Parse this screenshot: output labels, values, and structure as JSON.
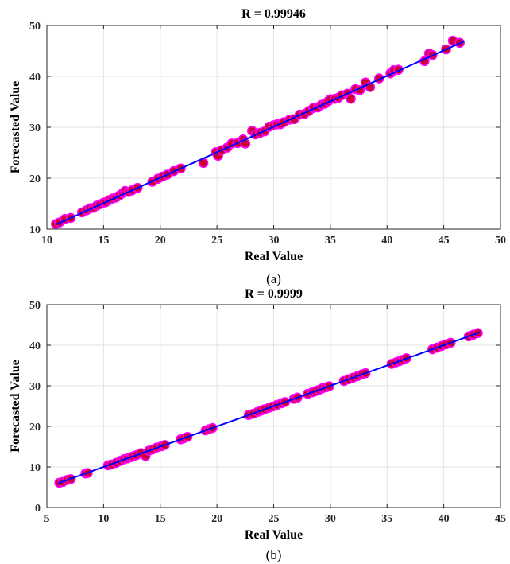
{
  "colors": {
    "fit_line": "#0000ff",
    "marker_fill": "#cc0033",
    "marker_edge": "#ff00ff",
    "grid": "#e3e3e3",
    "axes": "#262626"
  },
  "chart_data": [
    {
      "type": "scatter",
      "caption": "(a)",
      "title": "R = 0.99946",
      "xlabel": "Real Value",
      "ylabel": "Forecasted Value",
      "xlim": [
        10,
        50
      ],
      "ylim": [
        10,
        50
      ],
      "xticks": [
        10,
        15,
        20,
        25,
        30,
        35,
        40,
        45,
        50
      ],
      "yticks": [
        10,
        20,
        30,
        40,
        50
      ],
      "grid": true,
      "fit_line": {
        "x": [
          10.8,
          46.8
        ],
        "y": [
          10.9,
          46.9
        ]
      },
      "points": [
        [
          10.8,
          11.0
        ],
        [
          11.1,
          11.3
        ],
        [
          11.6,
          12.0
        ],
        [
          12.1,
          12.2
        ],
        [
          13.1,
          13.3
        ],
        [
          13.5,
          13.7
        ],
        [
          13.8,
          14.1
        ],
        [
          14.1,
          14.2
        ],
        [
          14.4,
          14.6
        ],
        [
          14.7,
          14.9
        ],
        [
          15.0,
          15.2
        ],
        [
          15.2,
          15.3
        ],
        [
          15.5,
          15.7
        ],
        [
          15.8,
          16.0
        ],
        [
          16.1,
          16.2
        ],
        [
          16.4,
          16.6
        ],
        [
          16.7,
          17.1
        ],
        [
          16.9,
          17.5
        ],
        [
          17.2,
          17.3
        ],
        [
          17.5,
          17.6
        ],
        [
          18.0,
          18.1
        ],
        [
          19.3,
          19.3
        ],
        [
          19.8,
          19.9
        ],
        [
          20.2,
          20.3
        ],
        [
          20.6,
          20.7
        ],
        [
          21.2,
          21.4
        ],
        [
          21.8,
          21.9
        ],
        [
          23.8,
          23.0
        ],
        [
          24.9,
          25.1
        ],
        [
          25.1,
          24.4
        ],
        [
          25.4,
          25.5
        ],
        [
          25.9,
          26.0
        ],
        [
          26.3,
          26.8
        ],
        [
          26.8,
          26.9
        ],
        [
          27.3,
          27.6
        ],
        [
          27.5,
          26.8
        ],
        [
          28.1,
          29.3
        ],
        [
          28.4,
          28.6
        ],
        [
          28.8,
          28.9
        ],
        [
          29.2,
          29.2
        ],
        [
          29.6,
          30.1
        ],
        [
          30.0,
          30.4
        ],
        [
          30.3,
          30.6
        ],
        [
          30.6,
          30.6
        ],
        [
          30.9,
          31.0
        ],
        [
          31.4,
          31.5
        ],
        [
          31.8,
          31.6
        ],
        [
          32.3,
          32.5
        ],
        [
          32.7,
          32.6
        ],
        [
          33.1,
          33.2
        ],
        [
          33.5,
          33.8
        ],
        [
          33.9,
          33.9
        ],
        [
          34.2,
          34.4
        ],
        [
          34.5,
          34.6
        ],
        [
          34.8,
          35.1
        ],
        [
          35.0,
          35.5
        ],
        [
          35.4,
          35.6
        ],
        [
          35.7,
          35.8
        ],
        [
          36.0,
          36.3
        ],
        [
          36.5,
          36.6
        ],
        [
          36.8,
          35.6
        ],
        [
          37.2,
          37.5
        ],
        [
          37.6,
          37.3
        ],
        [
          38.1,
          38.8
        ],
        [
          38.5,
          37.9
        ],
        [
          39.3,
          39.6
        ],
        [
          40.3,
          40.6
        ],
        [
          40.6,
          41.2
        ],
        [
          41.0,
          41.3
        ],
        [
          43.3,
          43.0
        ],
        [
          43.7,
          44.5
        ],
        [
          44.0,
          44.2
        ],
        [
          45.2,
          45.3
        ],
        [
          45.8,
          47.0
        ],
        [
          46.4,
          46.6
        ]
      ]
    },
    {
      "type": "scatter",
      "caption": "(b)",
      "title": "R = 0.9999",
      "xlabel": "Real Value",
      "ylabel": "Forecasted Value",
      "xlim": [
        5,
        45
      ],
      "ylim": [
        0,
        50
      ],
      "xticks": [
        5,
        10,
        15,
        20,
        25,
        30,
        35,
        40,
        45
      ],
      "yticks": [
        0,
        10,
        20,
        30,
        40,
        50
      ],
      "grid": true,
      "fit_line": {
        "x": [
          6.0,
          43.2
        ],
        "y": [
          6.0,
          43.2
        ]
      },
      "points": [
        [
          6.1,
          6.1
        ],
        [
          6.4,
          6.3
        ],
        [
          6.8,
          6.8
        ],
        [
          7.1,
          7.0
        ],
        [
          8.4,
          8.4
        ],
        [
          8.6,
          8.5
        ],
        [
          10.4,
          10.4
        ],
        [
          10.7,
          10.6
        ],
        [
          11.1,
          11.0
        ],
        [
          11.5,
          11.5
        ],
        [
          11.8,
          11.9
        ],
        [
          12.1,
          12.1
        ],
        [
          12.4,
          12.4
        ],
        [
          12.6,
          12.6
        ],
        [
          12.9,
          12.9
        ],
        [
          13.3,
          13.4
        ],
        [
          13.7,
          12.7
        ],
        [
          14.0,
          14.0
        ],
        [
          14.3,
          14.3
        ],
        [
          14.7,
          14.8
        ],
        [
          15.1,
          15.1
        ],
        [
          15.4,
          15.4
        ],
        [
          16.8,
          16.8
        ],
        [
          17.1,
          17.1
        ],
        [
          17.4,
          17.4
        ],
        [
          19.0,
          19.0
        ],
        [
          19.3,
          19.3
        ],
        [
          19.6,
          19.6
        ],
        [
          22.8,
          22.8
        ],
        [
          23.2,
          23.1
        ],
        [
          23.6,
          23.6
        ],
        [
          23.9,
          23.9
        ],
        [
          24.2,
          24.2
        ],
        [
          24.6,
          24.6
        ],
        [
          24.9,
          24.9
        ],
        [
          25.3,
          25.3
        ],
        [
          25.7,
          25.7
        ],
        [
          26.0,
          26.0
        ],
        [
          26.8,
          26.8
        ],
        [
          27.1,
          27.1
        ],
        [
          28.0,
          28.0
        ],
        [
          28.4,
          28.4
        ],
        [
          28.7,
          28.7
        ],
        [
          29.0,
          29.0
        ],
        [
          29.3,
          29.4
        ],
        [
          29.6,
          29.6
        ],
        [
          29.9,
          29.9
        ],
        [
          31.2,
          31.2
        ],
        [
          31.6,
          31.6
        ],
        [
          32.0,
          32.0
        ],
        [
          32.4,
          32.4
        ],
        [
          32.8,
          32.8
        ],
        [
          33.1,
          33.1
        ],
        [
          35.4,
          35.4
        ],
        [
          35.8,
          35.8
        ],
        [
          36.1,
          36.1
        ],
        [
          36.4,
          36.4
        ],
        [
          36.7,
          36.8
        ],
        [
          39.0,
          39.0
        ],
        [
          39.4,
          39.4
        ],
        [
          39.8,
          39.8
        ],
        [
          40.2,
          40.2
        ],
        [
          40.6,
          40.6
        ],
        [
          42.2,
          42.2
        ],
        [
          42.6,
          42.6
        ],
        [
          43.0,
          43.0
        ]
      ]
    }
  ]
}
